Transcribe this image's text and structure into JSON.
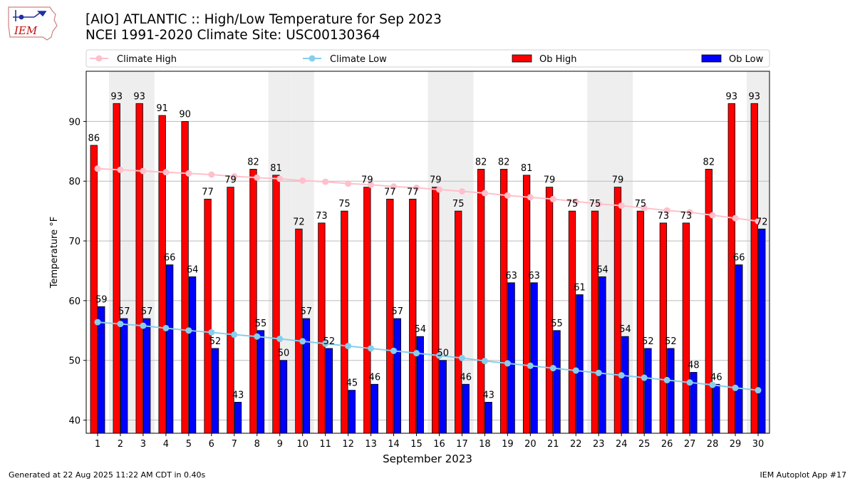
{
  "header": {
    "title": "[AIO] ATLANTIC :: High/Low Temperature for Sep 2023",
    "subtitle": "NCEI 1991-2020 Climate Site: USC00130364",
    "logo_text": "IEM"
  },
  "footer": {
    "generated": "Generated at 22 Aug 2025 11:22 AM CDT in 0.40s",
    "app": "IEM Autoplot App #17"
  },
  "colors": {
    "ob_high": "#ff0000",
    "ob_low": "#0000ff",
    "climate_high": "#ffc0cb",
    "climate_low": "#87ceeb",
    "weekend_band": "#eeeeee",
    "grid": "#bbbbbb"
  },
  "chart_data": {
    "type": "bar",
    "xlabel": "September 2023",
    "ylabel": "Temperature °F",
    "ylim": [
      37.8,
      98.4
    ],
    "yticks": [
      40,
      50,
      60,
      70,
      80,
      90
    ],
    "grid": true,
    "legend_placement": "top",
    "shaded_days": [
      2,
      3,
      9,
      10,
      16,
      17,
      23,
      24,
      30
    ],
    "categories": [
      "1",
      "2",
      "3",
      "4",
      "5",
      "6",
      "7",
      "8",
      "9",
      "10",
      "11",
      "12",
      "13",
      "14",
      "15",
      "16",
      "17",
      "18",
      "19",
      "20",
      "21",
      "22",
      "23",
      "24",
      "25",
      "26",
      "27",
      "28",
      "29",
      "30"
    ],
    "series": [
      {
        "name": "Ob High",
        "type": "bar",
        "values": [
          86,
          93,
          93,
          91,
          90,
          77,
          79,
          82,
          81,
          72,
          73,
          75,
          79,
          77,
          77,
          79,
          75,
          82,
          82,
          81,
          79,
          75,
          75,
          79,
          75,
          73,
          73,
          82,
          93,
          93
        ]
      },
      {
        "name": "Ob Low",
        "type": "bar",
        "values": [
          59,
          57,
          57,
          66,
          64,
          52,
          43,
          55,
          50,
          57,
          52,
          45,
          46,
          57,
          54,
          50,
          46,
          43,
          63,
          63,
          55,
          61,
          64,
          54,
          52,
          52,
          48,
          46,
          66,
          72
        ]
      },
      {
        "name": "Climate High",
        "type": "line",
        "values": [
          82.1,
          81.9,
          81.7,
          81.5,
          81.3,
          81.1,
          80.8,
          80.6,
          80.4,
          80.1,
          79.9,
          79.6,
          79.4,
          79.1,
          78.9,
          78.6,
          78.3,
          78.0,
          77.6,
          77.3,
          77.0,
          76.6,
          76.2,
          75.9,
          75.5,
          75.1,
          74.8,
          74.3,
          73.8,
          73.3
        ]
      },
      {
        "name": "Climate Low",
        "type": "line",
        "values": [
          56.4,
          56.1,
          55.8,
          55.4,
          55.0,
          54.7,
          54.3,
          54.0,
          53.6,
          53.2,
          52.8,
          52.4,
          52.0,
          51.6,
          51.2,
          50.8,
          50.4,
          49.9,
          49.5,
          49.1,
          48.7,
          48.3,
          47.9,
          47.5,
          47.1,
          46.7,
          46.3,
          45.9,
          45.4,
          45.0
        ]
      }
    ]
  }
}
